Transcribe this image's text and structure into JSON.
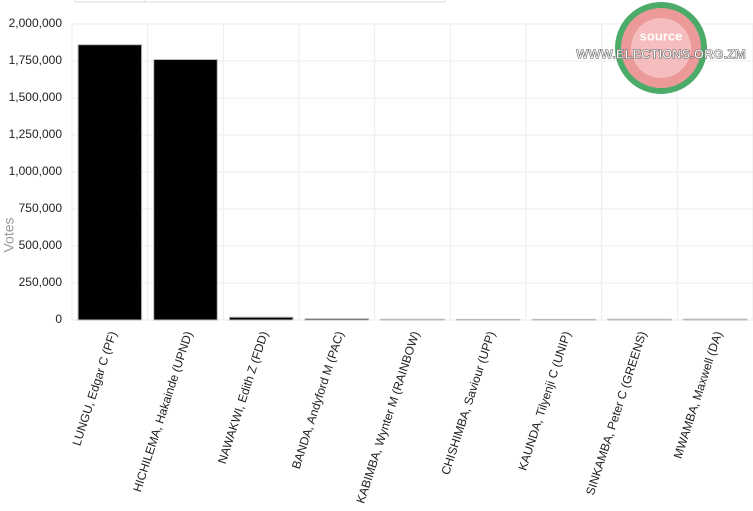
{
  "chart_data": {
    "type": "bar",
    "y_label": "Votes",
    "categories": [
      "LUNGU, Edgar C (PF)",
      "HICHILEMA, Hakainde  (UPND)",
      "NAWAKWI, Edith Z (FDD)",
      "BANDA, Andyford M (PAC)",
      "KABIMBA, Wynter M (RAINBOW)",
      "CHISHIMBA, Saviour  (UPP)",
      "KAUNDA, Tilyenji C (UNIP)",
      "SINKAMBA, Peter C (GREENS)",
      "MWAMBA, Maxwell  (DA)"
    ],
    "values": [
      1860000,
      1760000,
      19000,
      9000,
      5000,
      4000,
      4000,
      5000,
      6000
    ],
    "color": "#000000",
    "ylim": [
      0,
      2000000
    ],
    "yticks": [
      0,
      {
        "value": 250000,
        "label": "250,000"
      },
      {
        "value": 500000,
        "label": "500,000"
      },
      {
        "value": 750000,
        "label": "750,000"
      },
      {
        "value": 1000000,
        "label": "1,000,000"
      },
      {
        "value": 1250000,
        "label": "1,250,000"
      },
      {
        "value": 1500000,
        "label": "1,500,000"
      },
      {
        "value": 1750000,
        "label": "1,750,000"
      },
      {
        "value": 2000000,
        "label": "2,000,000"
      }
    ],
    "grid": true,
    "watermark": {
      "line1": "source",
      "line2": "WWW.ELECTIONS.ORG.ZM"
    }
  }
}
